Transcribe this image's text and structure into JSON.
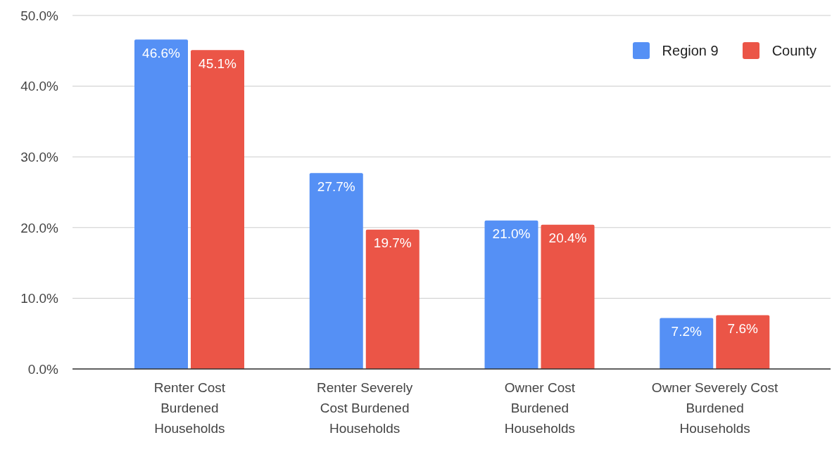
{
  "chart_data": {
    "type": "bar",
    "categories": [
      "Renter Cost Burdened Households",
      "Renter Severely Cost Burdened Households",
      "Owner Cost Burdened Households",
      "Owner Severely Cost Burdened Households"
    ],
    "series": [
      {
        "name": "Region 9",
        "color": "#5590f5",
        "values": [
          46.6,
          27.7,
          21.0,
          7.2
        ],
        "value_labels": [
          "46.6%",
          "27.7%",
          "21.0%",
          "7.2%"
        ]
      },
      {
        "name": "County",
        "color": "#eb5547",
        "values": [
          45.1,
          19.7,
          20.4,
          7.6
        ],
        "value_labels": [
          "45.1%",
          "19.7%",
          "20.4%",
          "7.6%"
        ]
      }
    ],
    "ylim": [
      0,
      50
    ],
    "yticks": [
      {
        "value": 0,
        "label": "0.0%"
      },
      {
        "value": 10,
        "label": "10.0%"
      },
      {
        "value": 20,
        "label": "20.0%"
      },
      {
        "value": 30,
        "label": "30.0%"
      },
      {
        "value": 40,
        "label": "40.0%"
      },
      {
        "value": 50,
        "label": "50.0%"
      }
    ],
    "grid": "y",
    "legend": "top right"
  }
}
